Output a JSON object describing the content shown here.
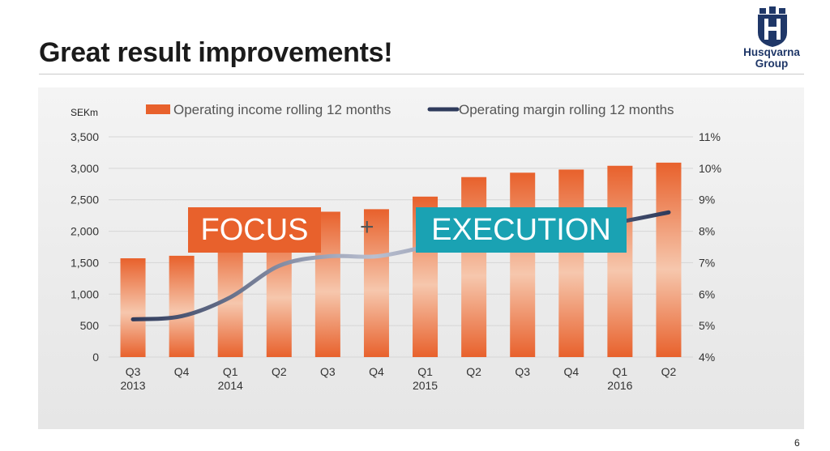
{
  "slide": {
    "title": "Great result improvements!",
    "page_number": "6",
    "logo": {
      "name": "husqvarna-logo",
      "text_line1": "Husqvarna",
      "text_line2": "Group",
      "color": "#1f3768"
    }
  },
  "overlay": {
    "focus_label": "FOCUS",
    "plus_label": "+",
    "execution_label": "EXECUTION",
    "focus_color": "#e8612c",
    "execution_color": "#1aa2b3"
  },
  "chart_data": {
    "type": "bar",
    "unit_label": "SEKm",
    "categories": [
      [
        "Q3",
        "2013"
      ],
      [
        "Q4",
        ""
      ],
      [
        "Q1",
        "2014"
      ],
      [
        "Q2",
        ""
      ],
      [
        "Q3",
        ""
      ],
      [
        "Q4",
        ""
      ],
      [
        "Q1",
        "2015"
      ],
      [
        "Q2",
        ""
      ],
      [
        "Q3",
        ""
      ],
      [
        "Q4",
        ""
      ],
      [
        "Q1",
        "2016"
      ],
      [
        "Q2",
        ""
      ]
    ],
    "series": [
      {
        "name": "Operating income rolling 12 months",
        "type": "bar",
        "axis": "left",
        "color": "#e8612c",
        "values": [
          1570,
          1610,
          1900,
          2100,
          2310,
          2350,
          2550,
          2860,
          2930,
          2980,
          3040,
          3090
        ]
      },
      {
        "name": "Operating margin rolling 12 months",
        "type": "line",
        "axis": "right",
        "color": "#2f3b5c",
        "values": [
          5.2,
          5.3,
          5.9,
          6.9,
          7.2,
          7.2,
          7.5,
          7.8,
          7.9,
          8.1,
          8.3,
          8.6
        ]
      }
    ],
    "y_left": {
      "ticks": [
        "0",
        "500",
        "1,000",
        "1,500",
        "2,000",
        "2,500",
        "3,000",
        "3,500"
      ],
      "range": [
        0,
        3500
      ]
    },
    "y_right": {
      "ticks": [
        "4%",
        "5%",
        "6%",
        "7%",
        "8%",
        "9%",
        "10%",
        "11%"
      ],
      "range": [
        4,
        11
      ]
    },
    "grid": true,
    "legend_position": "top"
  }
}
